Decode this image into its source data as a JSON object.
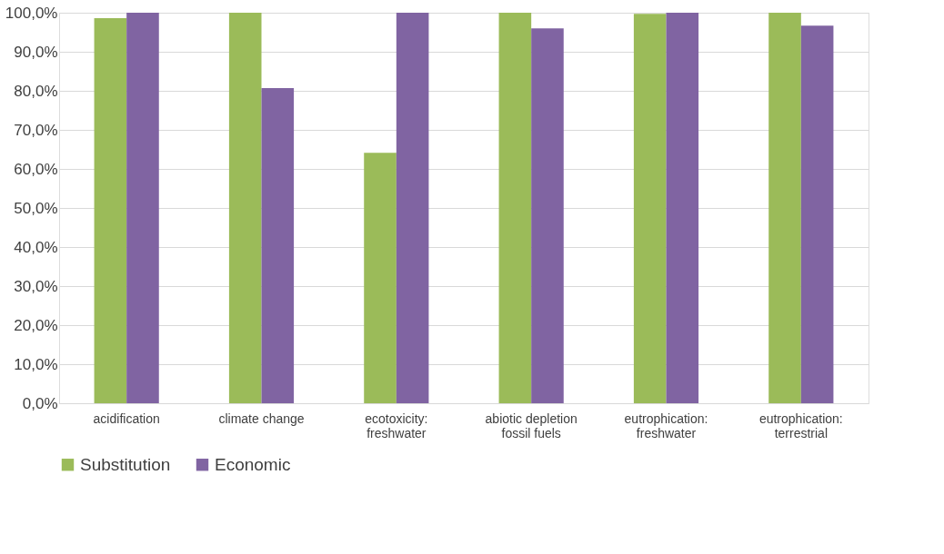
{
  "chart_data": {
    "type": "bar",
    "categories": [
      "acidification",
      "climate change",
      "ecotoxicity:\nfreshwater",
      "abiotic depletion\nfossil fuels",
      "eutrophication:\nfreshwater",
      "eutrophication:\nterrestrial"
    ],
    "series": [
      {
        "name": "Substitution",
        "color": "#9bbb59",
        "values": [
          98.6,
          100,
          64.1,
          100,
          99.7,
          100
        ]
      },
      {
        "name": "Economic",
        "color": "#8064a2",
        "values": [
          100,
          80.7,
          100,
          96.0,
          100,
          96.7
        ]
      }
    ],
    "ylim": [
      0,
      100
    ],
    "yticks": [
      {
        "value": 0,
        "label": "0,0%"
      },
      {
        "value": 10,
        "label": "10,0%"
      },
      {
        "value": 20,
        "label": "20,0%"
      },
      {
        "value": 30,
        "label": "30,0%"
      },
      {
        "value": 40,
        "label": "40,0%"
      },
      {
        "value": 50,
        "label": "50,0%"
      },
      {
        "value": 60,
        "label": "60,0%"
      },
      {
        "value": 70,
        "label": "70,0%"
      },
      {
        "value": 80,
        "label": "80,0%"
      },
      {
        "value": 90,
        "label": "90,0%"
      },
      {
        "value": 100,
        "label": "100,0%"
      }
    ],
    "grid": "y",
    "legend": "bottom"
  }
}
